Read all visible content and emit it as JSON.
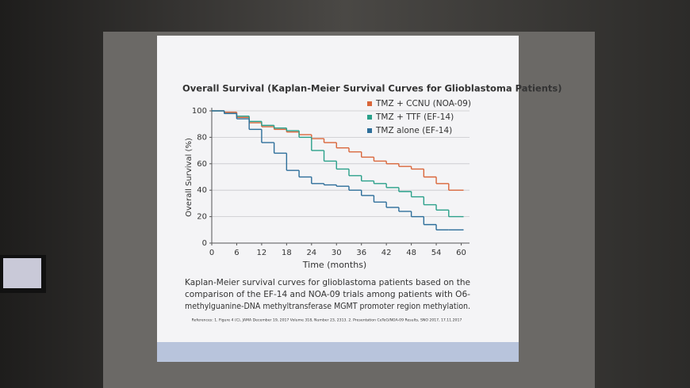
{
  "chart_data": {
    "type": "step",
    "title": "Overall Survival (Kaplan-Meier Survival Curves for Glioblastoma Patients)",
    "x_label": "Time (months)",
    "y_label": "Overall Survival (%)",
    "x": [
      0,
      3,
      6,
      9,
      12,
      15,
      18,
      21,
      24,
      27,
      30,
      33,
      36,
      39,
      42,
      45,
      48,
      51,
      54,
      57,
      60
    ],
    "series": [
      {
        "name": "TMZ + CCNU (NOA-09)",
        "color": "#d9663a",
        "values": [
          100,
          99,
          95,
          91,
          88,
          86,
          84,
          82,
          79,
          76,
          72,
          69,
          65,
          62,
          60,
          58,
          56,
          50,
          45,
          40,
          40
        ]
      },
      {
        "name": "TMZ + TTF (EF-14)",
        "color": "#2aa08a",
        "values": [
          100,
          98,
          96,
          92,
          89,
          87,
          85,
          80,
          70,
          62,
          56,
          51,
          47,
          45,
          42,
          39,
          35,
          29,
          25,
          20,
          20
        ]
      },
      {
        "name": "TMZ alone (EF-14)",
        "color": "#2d6e9a",
        "values": [
          100,
          98,
          94,
          86,
          76,
          68,
          55,
          50,
          45,
          44,
          43,
          40,
          36,
          31,
          27,
          24,
          20,
          14,
          10,
          10,
          10
        ]
      }
    ],
    "xlim": [
      0,
      62
    ],
    "ylim": [
      0,
      100
    ],
    "xticks": [
      0,
      6,
      12,
      18,
      24,
      30,
      36,
      42,
      48,
      54,
      60
    ],
    "yticks": [
      0,
      20,
      40,
      60,
      80,
      100
    ],
    "grid": true,
    "legend": "top-right",
    "caption": [
      "Kaplan-Meier survival curves for glioblastoma patients based on the",
      "comparison of the EF-14 and NOA-09 trials among patients with O6-",
      "methylguanine-DNA methyltransferase MGMT promoter region methylation."
    ],
    "references": "References: 1. Figure 4 (C), JAMA December 19, 2017 Volume 318, Number 23, 2313. 2. Presentation CeTeG/NOA-09 Results, SNO 2017, 17.11.2017"
  }
}
